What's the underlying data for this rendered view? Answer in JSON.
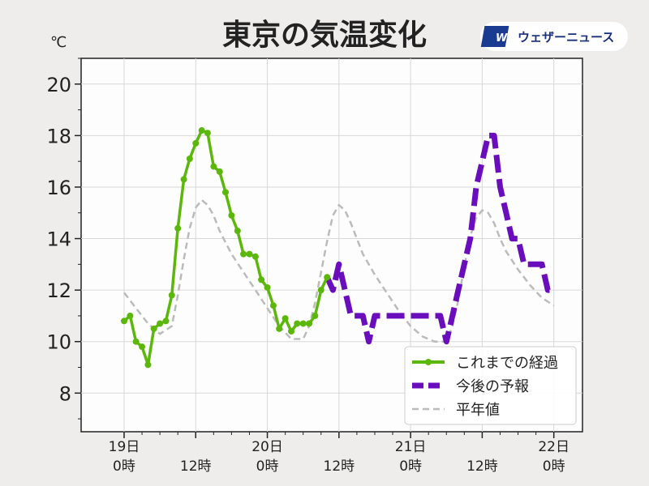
{
  "header": {
    "title": "東京の気温変化",
    "unit": "℃",
    "logo_mark": "WN",
    "logo_text": "ウェザーニュース"
  },
  "colors": {
    "observed": "#5bb80a",
    "forecast": "#6a0dbd",
    "normal": "#bbbbbb",
    "plot_bg": "#fdfdfd",
    "grid": "#d8d8d8",
    "logo_blue": "#1a3b8f"
  },
  "chart_data": {
    "type": "line",
    "title": "東京の気温変化",
    "ylabel": "℃",
    "xlabel": "",
    "ylim": [
      6.5,
      21
    ],
    "xlim": [
      -0.3,
      3.2
    ],
    "yticks": [
      8,
      10,
      12,
      14,
      16,
      18,
      20
    ],
    "xticks": [
      {
        "x": 0,
        "top": "19日",
        "bottom": "0時"
      },
      {
        "x": 0.5,
        "top": "",
        "bottom": "12時"
      },
      {
        "x": 1,
        "top": "20日",
        "bottom": "0時"
      },
      {
        "x": 1.5,
        "top": "",
        "bottom": "12時"
      },
      {
        "x": 2,
        "top": "21日",
        "bottom": "0時"
      },
      {
        "x": 2.5,
        "top": "",
        "bottom": "12時"
      },
      {
        "x": 3,
        "top": "22日",
        "bottom": "0時"
      }
    ],
    "grid": true,
    "legend_position": "bottom-right",
    "series": [
      {
        "name": "これまでの経過",
        "style": "solid-marker",
        "x": [
          0,
          0.042,
          0.083,
          0.125,
          0.167,
          0.208,
          0.25,
          0.292,
          0.333,
          0.375,
          0.417,
          0.458,
          0.5,
          0.542,
          0.583,
          0.625,
          0.667,
          0.708,
          0.75,
          0.792,
          0.833,
          0.875,
          0.917,
          0.958,
          1.0,
          1.042,
          1.083,
          1.125,
          1.167,
          1.208,
          1.25,
          1.292,
          1.333,
          1.375,
          1.417
        ],
        "y": [
          10.8,
          11.0,
          10.0,
          9.8,
          9.1,
          10.5,
          10.7,
          10.8,
          11.8,
          14.4,
          16.3,
          17.1,
          17.7,
          18.2,
          18.1,
          16.8,
          16.6,
          15.8,
          14.9,
          14.3,
          13.4,
          13.4,
          13.3,
          12.4,
          12.1,
          11.4,
          10.5,
          10.9,
          10.4,
          10.7,
          10.7,
          10.7,
          11.0,
          12.0,
          12.5
        ]
      },
      {
        "name": "今後の予報",
        "style": "dashed-thick",
        "x": [
          1.417,
          1.458,
          1.5,
          1.542,
          1.583,
          1.625,
          1.667,
          1.708,
          1.75,
          1.792,
          1.833,
          1.875,
          1.917,
          1.958,
          2.0,
          2.042,
          2.083,
          2.125,
          2.167,
          2.208,
          2.25,
          2.292,
          2.333,
          2.375,
          2.417,
          2.458,
          2.5,
          2.542,
          2.583,
          2.625,
          2.667,
          2.708,
          2.75,
          2.792,
          2.833,
          2.875,
          2.917,
          2.958,
          3.0
        ],
        "y": [
          12.5,
          12.0,
          13.0,
          12.0,
          11.0,
          11.0,
          11.0,
          10.0,
          11.0,
          11.0,
          11.0,
          11.0,
          11.0,
          11.0,
          11.0,
          11.0,
          11.0,
          11.0,
          11.0,
          11.0,
          10.0,
          11.0,
          12.0,
          13.0,
          14.0,
          16.0,
          17.0,
          18.0,
          18.0,
          16.0,
          15.0,
          14.0,
          14.0,
          13.0,
          13.0,
          13.0,
          13.0,
          12.0,
          12.0
        ]
      },
      {
        "name": "平年値",
        "style": "dashed-thin",
        "x": [
          0,
          0.083,
          0.167,
          0.25,
          0.333,
          0.375,
          0.417,
          0.458,
          0.5,
          0.542,
          0.583,
          0.625,
          0.667,
          0.75,
          0.833,
          0.917,
          1.0,
          1.083,
          1.167,
          1.25,
          1.292,
          1.333,
          1.375,
          1.417,
          1.458,
          1.5,
          1.542,
          1.583,
          1.625,
          1.667,
          1.75,
          1.833,
          1.917,
          2.0,
          2.083,
          2.167,
          2.25,
          2.292,
          2.333,
          2.375,
          2.417,
          2.458,
          2.5,
          2.542,
          2.583,
          2.625,
          2.667,
          2.75,
          2.833,
          2.917,
          3.0
        ],
        "y": [
          11.9,
          11.3,
          10.7,
          10.3,
          10.6,
          11.8,
          13.2,
          14.4,
          15.2,
          15.5,
          15.3,
          14.9,
          14.3,
          13.4,
          12.7,
          12.0,
          11.3,
          10.6,
          10.1,
          10.1,
          10.6,
          11.5,
          12.7,
          13.9,
          14.9,
          15.3,
          15.1,
          14.6,
          14.0,
          13.4,
          12.6,
          11.9,
          11.2,
          10.6,
          10.2,
          10.0,
          10.0,
          10.6,
          11.6,
          12.9,
          14.1,
          14.8,
          15.1,
          15.0,
          14.6,
          14.0,
          13.5,
          12.8,
          12.2,
          11.7,
          11.4
        ]
      }
    ]
  }
}
